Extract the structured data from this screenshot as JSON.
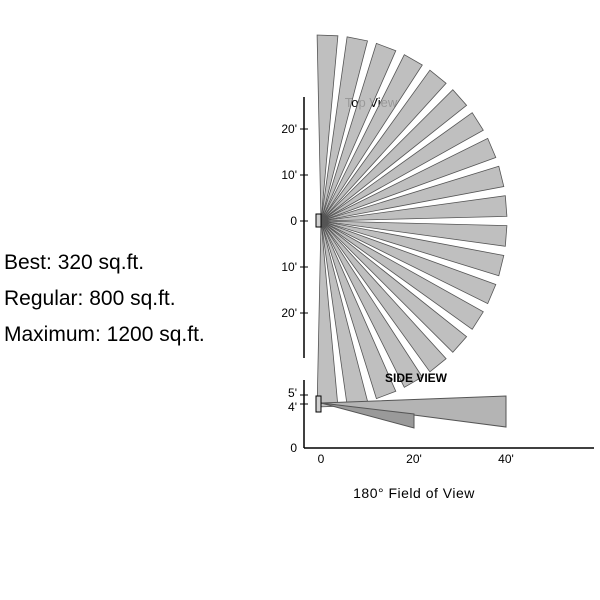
{
  "coverage": {
    "best": "Best: 320 sq.ft.",
    "regular": "Regular: 800 sq.ft.",
    "maximum": "Maximum: 1200 sq.ft."
  },
  "top_view": {
    "title": "Top View",
    "y_ticks": [
      "20'",
      "10'",
      "0",
      "10'",
      "20'"
    ]
  },
  "side_view": {
    "title": "SIDE VIEW",
    "y_ticks": [
      "5'",
      "4'",
      "0"
    ],
    "x_ticks": [
      "0",
      "20'",
      "40'"
    ]
  },
  "caption": "180° Field of View",
  "colors": {
    "beam_fill": "#b4b4b4",
    "beam_stroke": "#555555",
    "axis": "#000000"
  }
}
